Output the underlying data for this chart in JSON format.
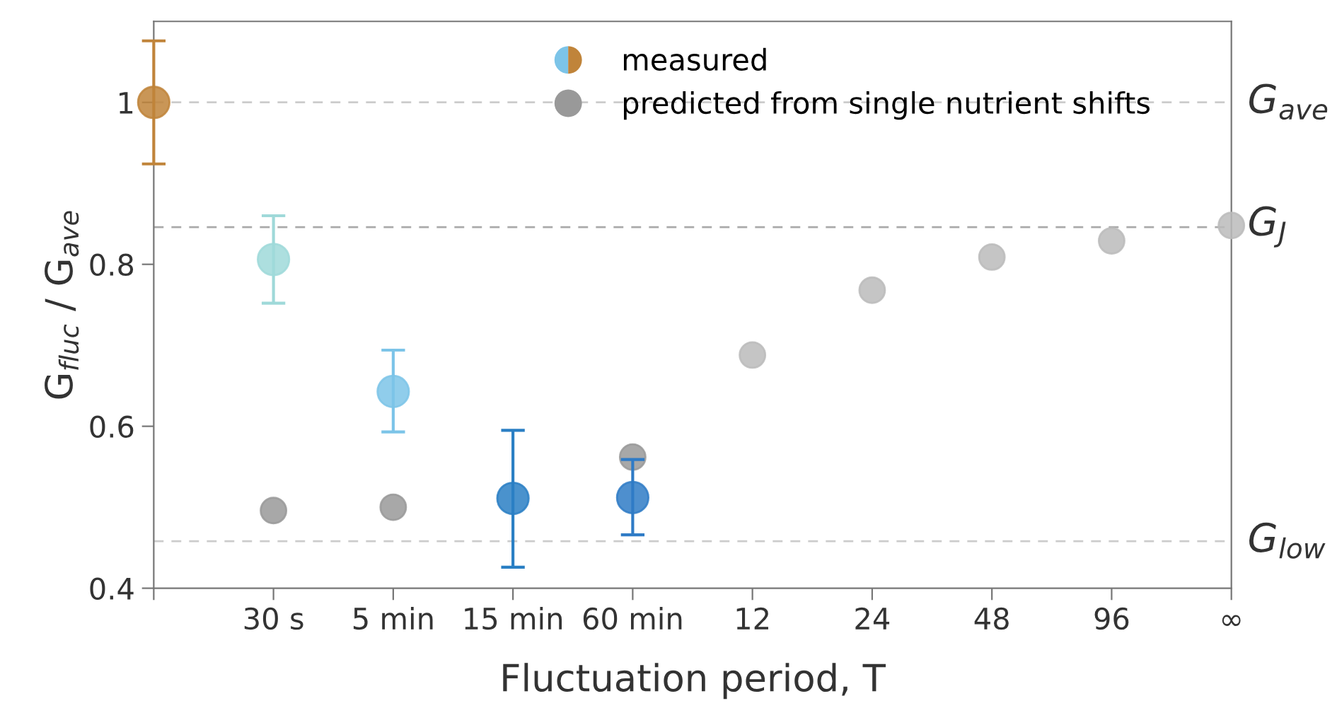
{
  "chart_data": {
    "type": "scatter",
    "xlabel": "Fluctuation period, T",
    "ylabel": "G$_{fluc}$ / G$_{ave}$",
    "categories": [
      null,
      "30 s",
      "5 min",
      "15 min",
      "60 min",
      "12",
      "24",
      "48",
      "96",
      "∞"
    ],
    "ylim": [
      0.4,
      1.1
    ],
    "yticks": [
      0.4,
      0.6,
      0.8,
      1
    ],
    "grid": false,
    "legend": "top right",
    "marker": "circle",
    "series": [
      {
        "name": "predicted from single nutrient shifts",
        "color": "#999999",
        "colors": [
          "#999999",
          "#999999",
          "#999999",
          "#999999",
          "#999999",
          "#bbbbbb",
          "#bbbbbb",
          "#bbbbbb",
          "#bbbbbb",
          "#bbbbbb"
        ],
        "values": [
          null,
          0.496,
          0.5,
          null,
          0.562,
          0.688,
          0.768,
          0.809,
          0.829,
          0.848
        ]
      },
      {
        "name": "measured",
        "color": "#7cc4e8",
        "colors": [
          "#c0843a",
          "#9fd9d9",
          "#7cc4e8",
          "#2a7fc4",
          "#2f7bc6",
          null,
          null,
          null,
          null,
          null
        ],
        "values": [
          1,
          0.806,
          0.643,
          0.511,
          0.512,
          null,
          null,
          null,
          null,
          null
        ],
        "errors": [
          [
            0.924,
            1.076
          ],
          [
            0.752,
            0.86
          ],
          [
            0.593,
            0.694
          ],
          [
            0.426,
            0.595
          ],
          [
            0.466,
            0.559
          ],
          null,
          null,
          null,
          null,
          null
        ]
      }
    ],
    "ref_lines": [
      {
        "axis": "y",
        "value": 1,
        "label": "G$_{ave}$",
        "color": "#cccccc",
        "line_style": "dashed"
      },
      {
        "axis": "y",
        "value": 0.846,
        "label": "G$_{J}$",
        "color": "#aaaaaa",
        "line_style": "dashed"
      },
      {
        "axis": "y",
        "value": 0.458,
        "label": "G$_{low}$",
        "color": "#cccccc",
        "line_style": "dashed"
      }
    ]
  }
}
